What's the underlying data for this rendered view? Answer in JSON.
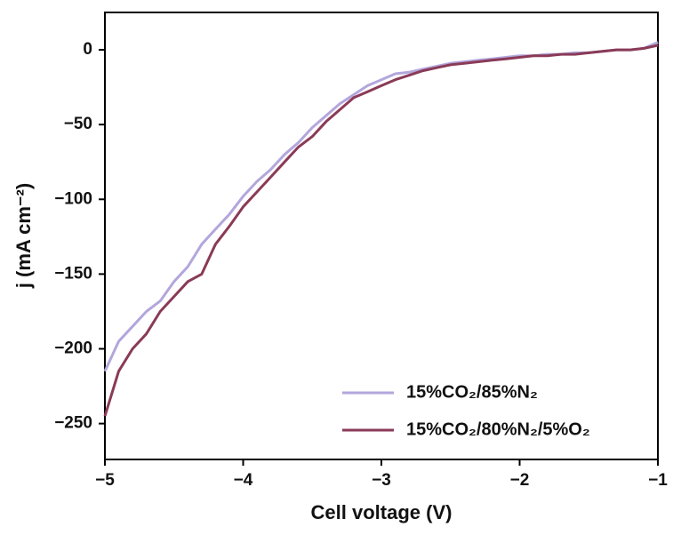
{
  "chart_data": {
    "type": "line",
    "xlabel": "Cell voltage (V)",
    "ylabel": "j (mA cm⁻²)",
    "x": [
      -5,
      -4.9,
      -4.8,
      -4.7,
      -4.6,
      -4.5,
      -4.4,
      -4.3,
      -4.2,
      -4.1,
      -4,
      -3.9,
      -3.8,
      -3.7,
      -3.6,
      -3.5,
      -3.4,
      -3.3,
      -3.2,
      -3.1,
      -3,
      -2.9,
      -2.8,
      -2.7,
      -2.6,
      -2.5,
      -2.4,
      -2.3,
      -2.2,
      -2.1,
      -2,
      -1.9,
      -1.8,
      -1.7,
      -1.6,
      -1.5,
      -1.4,
      -1.3,
      -1.2,
      -1.1,
      -1
    ],
    "series": [
      {
        "name": "15%CO₂/85%N₂",
        "color": "#b3a6dc",
        "values": [
          -215,
          -195,
          -185,
          -175,
          -168,
          -155,
          -145,
          -130,
          -120,
          -110,
          -98,
          -88,
          -80,
          -70,
          -62,
          -52,
          -44,
          -36,
          -30,
          -24,
          -20,
          -16,
          -15,
          -13,
          -11,
          -9,
          -8,
          -7,
          -6,
          -5,
          -4,
          -4,
          -3,
          -3,
          -2,
          -2,
          -1,
          0,
          0,
          1,
          5
        ]
      },
      {
        "name": "15%CO₂/80%N₂/5%O₂",
        "color": "#8a3a57",
        "values": [
          -245,
          -215,
          -200,
          -190,
          -175,
          -165,
          -155,
          -150,
          -130,
          -118,
          -105,
          -95,
          -85,
          -75,
          -65,
          -58,
          -48,
          -40,
          -32,
          -28,
          -24,
          -20,
          -17,
          -14,
          -12,
          -10,
          -9,
          -8,
          -7,
          -6,
          -5,
          -4,
          -4,
          -3,
          -3,
          -2,
          -1,
          0,
          0,
          1,
          3
        ]
      }
    ],
    "xlim": [
      -5,
      -1
    ],
    "xticks": [
      {
        "value": -5,
        "label": "−5"
      },
      {
        "value": -4,
        "label": "−4"
      },
      {
        "value": -3,
        "label": "−3"
      },
      {
        "value": -2,
        "label": "−2"
      },
      {
        "value": -1,
        "label": "−1"
      }
    ],
    "ylim": [
      -274,
      25
    ],
    "yticks": [
      0,
      {
        "value": -50,
        "label": "−50"
      },
      {
        "value": -100,
        "label": "−100"
      },
      {
        "value": -150,
        "label": "−150"
      },
      {
        "value": -200,
        "label": "−200"
      },
      {
        "value": -250,
        "label": "−250"
      }
    ],
    "grid": false,
    "legend": "lower right"
  }
}
